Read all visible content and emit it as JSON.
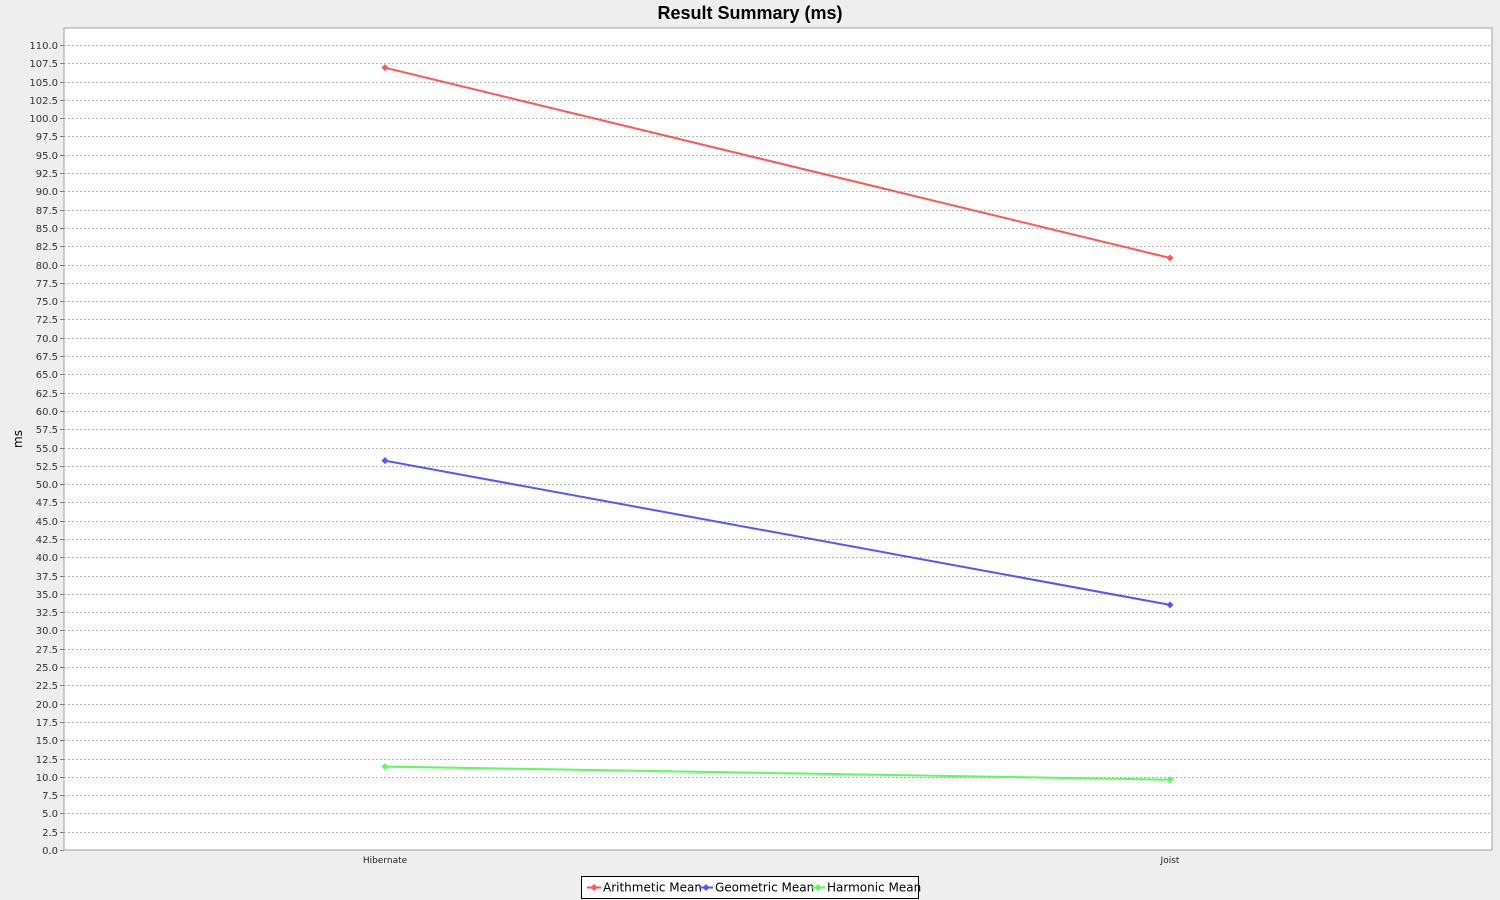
{
  "chart_data": {
    "type": "line",
    "title": "Result Summary (ms)",
    "xlabel": "",
    "ylabel": "ms",
    "categories": [
      "Hibernate",
      "Joist"
    ],
    "ylim": [
      0,
      110
    ],
    "ytick_step": 2.5,
    "grid": true,
    "legend_position": "bottom-center",
    "series": [
      {
        "name": "Arithmetic Mean",
        "color": "#ff5555",
        "values": [
          106.9,
          80.9
        ]
      },
      {
        "name": "Geometric Mean",
        "color": "#5555ff",
        "values": [
          53.2,
          33.5
        ]
      },
      {
        "name": "Harmonic Mean",
        "color": "#55ff55",
        "values": [
          11.4,
          9.6
        ]
      }
    ]
  }
}
